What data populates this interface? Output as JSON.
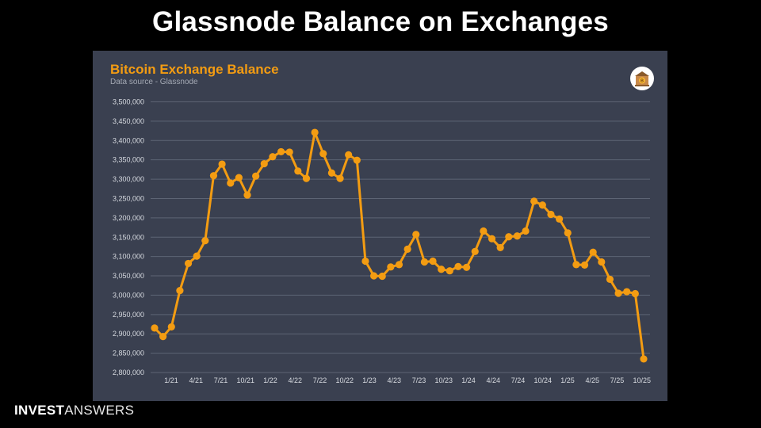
{
  "slide": {
    "title": "Glassnode Balance on Exchanges"
  },
  "brand": {
    "part1": "INVEST",
    "part2": "ANSWERS"
  },
  "colors": {
    "accent": "#f39c12",
    "panel": "#3a4050",
    "background": "#000000"
  },
  "logo": {
    "icon": "bitcoin-bank-icon"
  },
  "chart_data": {
    "type": "line",
    "title": "Bitcoin Exchange Balance",
    "subtitle": "Data source - Glassnode",
    "xlabel": "",
    "ylabel": "",
    "ylim": [
      2800000,
      3500000
    ],
    "yticks": [
      2800000,
      2850000,
      2900000,
      2950000,
      3000000,
      3050000,
      3100000,
      3150000,
      3200000,
      3250000,
      3300000,
      3350000,
      3400000,
      3450000,
      3500000
    ],
    "ytick_labels": [
      "2,800,000",
      "2,850,000",
      "2,900,000",
      "2,950,000",
      "3,000,000",
      "3,050,000",
      "3,100,000",
      "3,150,000",
      "3,200,000",
      "3,250,000",
      "3,300,000",
      "3,350,000",
      "3,400,000",
      "3,450,000",
      "3,500,000"
    ],
    "xtick_labels": [
      "1/21",
      "4/21",
      "7/21",
      "10/21",
      "1/22",
      "4/22",
      "7/22",
      "10/22",
      "1/23",
      "4/23",
      "7/23",
      "10/23",
      "1/24",
      "4/24",
      "7/24",
      "10/24",
      "1/25",
      "4/25",
      "7/25",
      "10/25"
    ],
    "grid": true,
    "series": [
      {
        "color": "#f39c12",
        "values": [
          2915000,
          2893000,
          2918000,
          3012000,
          3082000,
          3101000,
          3141000,
          3309000,
          3339000,
          3290000,
          3304000,
          3259000,
          3308000,
          3340000,
          3358000,
          3371000,
          3370000,
          3321000,
          3302000,
          3421000,
          3366000,
          3316000,
          3302000,
          3363000,
          3349000,
          3088000,
          3050000,
          3049000,
          3073000,
          3079000,
          3119000,
          3157000,
          3086000,
          3088000,
          3067000,
          3063000,
          3074000,
          3072000,
          3113000,
          3166000,
          3146000,
          3123000,
          3151000,
          3153000,
          3166000,
          3243000,
          3233000,
          3209000,
          3197000,
          3161000,
          3079000,
          3078000,
          3111000,
          3086000,
          3041000,
          3005000,
          3009000,
          3004000,
          2835000
        ]
      }
    ]
  }
}
